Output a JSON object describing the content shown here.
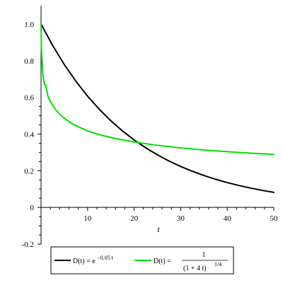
{
  "chart_data": {
    "type": "line",
    "title": "",
    "xlabel": "t",
    "ylabel": "",
    "xlim": [
      0,
      50
    ],
    "ylim": [
      -0.2,
      1.1
    ],
    "x_ticks": [
      10,
      20,
      30,
      40,
      50
    ],
    "x_tick_labels": [
      "10",
      "20",
      "30",
      "40",
      "50"
    ],
    "y_ticks": [
      -0.2,
      0,
      0.2,
      0.4,
      0.6,
      0.8,
      1.0
    ],
    "y_tick_labels": [
      "-0.2",
      "0",
      "0.2",
      "0.4",
      "0.6",
      "0.8",
      "1.0"
    ],
    "grid": false,
    "legend_position": "bottom",
    "series": [
      {
        "name": "D(t) = e^(-0.05 t)",
        "color": "#000000",
        "x": [
          0,
          2.5,
          5,
          7.5,
          10,
          12.5,
          15,
          17.5,
          20,
          22.5,
          25,
          27.5,
          30,
          32.5,
          35,
          37.5,
          40,
          42.5,
          45,
          47.5,
          50
        ],
        "y": [
          1.0,
          0.8825,
          0.7788,
          0.6873,
          0.6065,
          0.5353,
          0.4724,
          0.4169,
          0.3679,
          0.3247,
          0.2865,
          0.2528,
          0.2231,
          0.1969,
          0.1738,
          0.1534,
          0.1353,
          0.1194,
          0.1054,
          0.093,
          0.0821
        ]
      },
      {
        "name": "D(t) = 1/(1+4t)^(1/4)",
        "color": "#00e000",
        "x": [
          0,
          0.05,
          0.1,
          0.2,
          0.35,
          0.5,
          0.75,
          1,
          1.5,
          2,
          3,
          4,
          5,
          7,
          10,
          13,
          16,
          20,
          25,
          30,
          35,
          40,
          45,
          50
        ],
        "y": [
          1.0,
          0.9129,
          0.8633,
          0.7995,
          0.7401,
          0.7071,
          0.6687,
          0.6687,
          0.6043,
          0.5774,
          0.5373,
          0.5081,
          0.4855,
          0.4517,
          0.4171,
          0.3932,
          0.3752,
          0.3564,
          0.3384,
          0.3244,
          0.3131,
          0.3037,
          0.2957,
          0.2887
        ]
      }
    ],
    "legend": {
      "black_prefix": "D(t) = e",
      "black_exponent": "−0.05 t",
      "green_prefix": "D(t) = ",
      "green_numerator": "1",
      "green_denominator": "(1 + 4 t)",
      "green_denominator_exponent": "1/4"
    }
  }
}
